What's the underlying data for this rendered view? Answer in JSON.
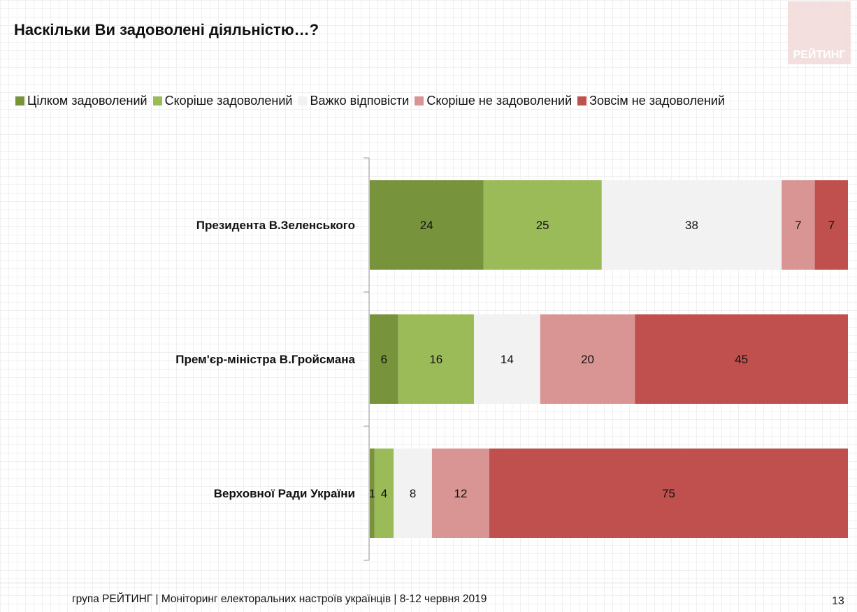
{
  "title": "Наскільки Ви задоволені діяльністю…?",
  "logo_text": "РЕЙТИНГ",
  "footer": "група РЕЙТИНГ | Моніторинг електоральних настроїв українців  | 8-12 червня 2019",
  "page_number": "13",
  "chart_data": {
    "type": "bar",
    "orientation": "horizontal",
    "stacked": true,
    "categories": [
      "Президента В.Зеленського",
      "Прем'єр-міністра В.Гройсмана",
      "Верховної Ради України"
    ],
    "series": [
      {
        "name": "Цілком задоволений",
        "color": "#77933c",
        "values": [
          24,
          6,
          1
        ]
      },
      {
        "name": "Скоріше задоволений",
        "color": "#9bbb59",
        "values": [
          25,
          16,
          4
        ]
      },
      {
        "name": "Важко відповісти",
        "color": "#f2f2f2",
        "values": [
          38,
          14,
          8
        ]
      },
      {
        "name": "Скоріше не задоволений",
        "color": "#d99594",
        "values": [
          7,
          20,
          12
        ]
      },
      {
        "name": "Зовсім не задоволений",
        "color": "#c0504d",
        "values": [
          7,
          45,
          75
        ]
      }
    ],
    "legend": "top",
    "data_labels": true
  }
}
